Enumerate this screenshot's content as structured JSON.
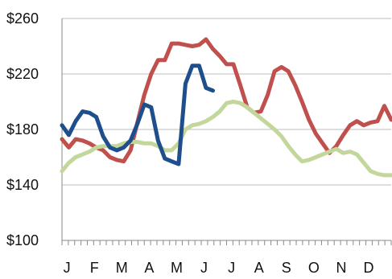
{
  "chart_data": {
    "type": "line",
    "title": "",
    "xlabel": "",
    "ylabel": "",
    "ylim": [
      100,
      260
    ],
    "y_ticks": [
      "$100",
      "$140",
      "$180",
      "$220",
      "$260"
    ],
    "y_tick_values": [
      100,
      140,
      180,
      220,
      260
    ],
    "x_tick_labels": [
      "J",
      "F",
      "M",
      "A",
      "M",
      "J",
      "J",
      "A",
      "S",
      "O",
      "N",
      "D"
    ],
    "x_range": [
      0,
      12
    ],
    "grid": "horizontal",
    "legend": "none",
    "series": [
      {
        "color": "#c0504d",
        "x": [
          0.0,
          0.25,
          0.5,
          0.75,
          1.0,
          1.25,
          1.5,
          1.75,
          2.0,
          2.25,
          2.5,
          2.75,
          3.0,
          3.25,
          3.5,
          3.75,
          4.0,
          4.25,
          4.5,
          4.75,
          5.0,
          5.25,
          5.5,
          5.75,
          6.0,
          6.25,
          6.5,
          6.75,
          7.0,
          7.25,
          7.5,
          7.75,
          8.0,
          8.25,
          8.5,
          8.75,
          9.0,
          9.25,
          9.5,
          9.75,
          10.0,
          10.25,
          10.5,
          10.75,
          11.0,
          11.25,
          11.5,
          11.75,
          12.0
        ],
        "values": [
          173,
          167,
          173,
          172,
          170,
          167,
          165,
          160,
          158,
          157,
          165,
          185,
          205,
          220,
          230,
          230,
          242,
          242,
          241,
          240,
          241,
          245,
          238,
          233,
          227,
          227,
          212,
          196,
          192,
          193,
          205,
          222,
          225,
          222,
          212,
          200,
          187,
          177,
          170,
          163,
          168,
          176,
          183,
          186,
          183,
          185,
          186,
          197,
          187
        ]
      },
      {
        "color": "#c3d69b",
        "x": [
          0.0,
          0.25,
          0.5,
          0.75,
          1.0,
          1.25,
          1.5,
          1.75,
          2.0,
          2.25,
          2.5,
          2.75,
          3.0,
          3.25,
          3.5,
          3.75,
          4.0,
          4.25,
          4.5,
          4.75,
          5.0,
          5.25,
          5.5,
          5.75,
          6.0,
          6.25,
          6.5,
          6.75,
          7.0,
          7.25,
          7.5,
          7.75,
          8.0,
          8.25,
          8.5,
          8.75,
          9.0,
          9.25,
          9.5,
          9.75,
          10.0,
          10.25,
          10.5,
          10.75,
          11.0,
          11.25,
          11.5,
          11.75,
          12.0
        ],
        "values": [
          150,
          156,
          160,
          162,
          164,
          167,
          168,
          168,
          168,
          170,
          171,
          171,
          170,
          170,
          168,
          165,
          165,
          170,
          180,
          183,
          184,
          186,
          189,
          193,
          199,
          200,
          199,
          196,
          192,
          188,
          184,
          180,
          175,
          168,
          162,
          157,
          158,
          160,
          162,
          164,
          166,
          163,
          164,
          162,
          156,
          150,
          148,
          147,
          147
        ]
      },
      {
        "color": "#1f4e8c",
        "x": [
          0.0,
          0.25,
          0.5,
          0.75,
          1.0,
          1.25,
          1.5,
          1.75,
          2.0,
          2.25,
          2.5,
          2.75,
          3.0,
          3.25,
          3.5,
          3.75,
          4.0,
          4.25,
          4.5,
          4.75,
          5.0,
          5.25,
          5.5
        ],
        "values": [
          183,
          176,
          186,
          193,
          192,
          189,
          175,
          167,
          165,
          167,
          172,
          184,
          198,
          196,
          172,
          159,
          157,
          155,
          213,
          226,
          226,
          210,
          208
        ]
      }
    ]
  }
}
